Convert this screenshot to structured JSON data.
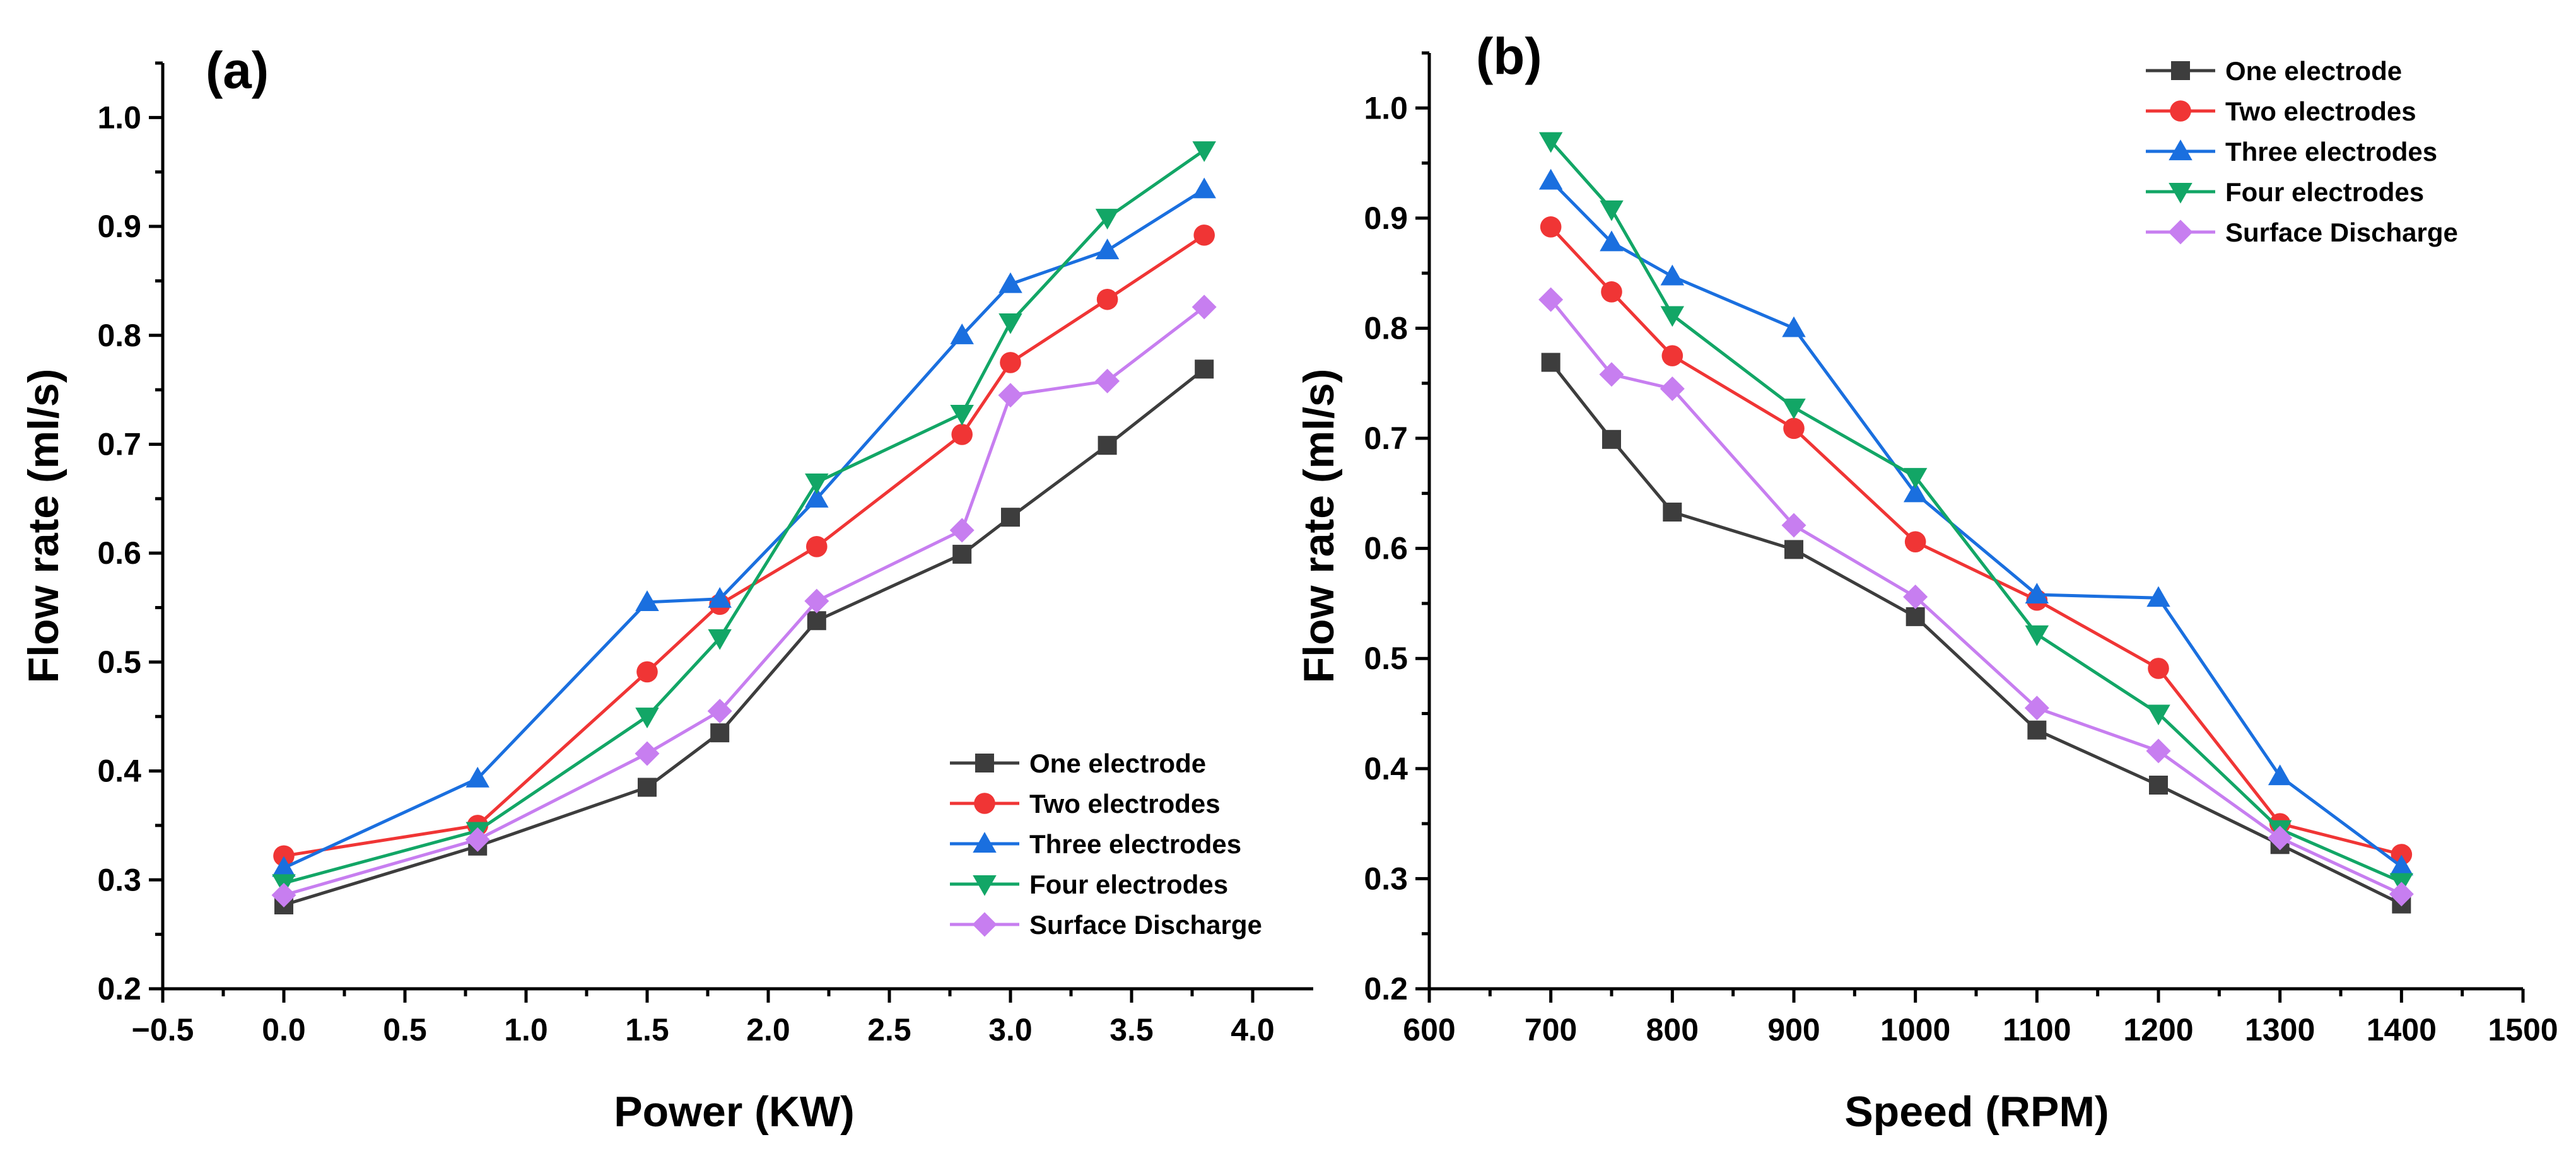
{
  "chart_data": [
    {
      "type": "line",
      "panel_label": "(a)",
      "title": "",
      "xlabel": "Power (KW)",
      "ylabel": "Flow rate (ml/s)",
      "xlim": [
        -0.5,
        4.25
      ],
      "ylim": [
        0.2,
        1.05
      ],
      "xticks": [
        -0.5,
        0.0,
        0.5,
        1.0,
        1.5,
        2.0,
        2.5,
        3.0,
        3.5,
        4.0
      ],
      "xtick_labels": [
        "−0.5",
        "0.0",
        "0.5",
        "1.0",
        "1.5",
        "2.0",
        "2.5",
        "3.0",
        "3.5",
        "4.0"
      ],
      "yticks": [
        0.2,
        0.3,
        0.4,
        0.5,
        0.6,
        0.7,
        0.8,
        0.9,
        1.0
      ],
      "ytick_labels": [
        "0.2",
        "0.3",
        "0.4",
        "0.5",
        "0.6",
        "0.7",
        "0.8",
        "0.9",
        "1.0"
      ],
      "legend_position": "bottom-right",
      "x": [
        0.0,
        0.8,
        1.5,
        1.8,
        2.2,
        2.8,
        3.0,
        3.4,
        3.8
      ],
      "series": [
        {
          "name": "One electrode",
          "color": "#3d3d3d",
          "marker": "square",
          "values": [
            0.277,
            0.331,
            0.385,
            0.435,
            0.538,
            0.599,
            0.633,
            0.699,
            0.769
          ]
        },
        {
          "name": "Two electrodes",
          "color": "#f03535",
          "marker": "circle",
          "values": [
            0.322,
            0.35,
            0.491,
            0.553,
            0.606,
            0.709,
            0.775,
            0.833,
            0.892
          ]
        },
        {
          "name": "Three electrodes",
          "color": "#1a6fdf",
          "marker": "triangle-up",
          "values": [
            0.311,
            0.393,
            0.555,
            0.558,
            0.65,
            0.8,
            0.847,
            0.878,
            0.934
          ]
        },
        {
          "name": "Four electrodes",
          "color": "#12a666",
          "marker": "triangle-down",
          "values": [
            0.297,
            0.345,
            0.45,
            0.522,
            0.665,
            0.728,
            0.812,
            0.908,
            0.97
          ]
        },
        {
          "name": "Surface Discharge",
          "color": "#c77ef0",
          "marker": "diamond",
          "values": [
            0.286,
            0.337,
            0.416,
            0.455,
            0.556,
            0.621,
            0.745,
            0.758,
            0.826
          ]
        }
      ]
    },
    {
      "type": "line",
      "panel_label": "(b)",
      "title": "",
      "xlabel": "Speed (RPM)",
      "ylabel": "Flow rate (ml/s)",
      "xlim": [
        600,
        1500
      ],
      "ylim": [
        0.2,
        1.05
      ],
      "xticks": [
        600,
        700,
        800,
        900,
        1000,
        1100,
        1200,
        1300,
        1400,
        1500
      ],
      "xtick_labels": [
        "600",
        "700",
        "800",
        "900",
        "1000",
        "1100",
        "1200",
        "1300",
        "1400",
        "1500"
      ],
      "yticks": [
        0.2,
        0.3,
        0.4,
        0.5,
        0.6,
        0.7,
        0.8,
        0.9,
        1.0
      ],
      "ytick_labels": [
        "0.2",
        "0.3",
        "0.4",
        "0.5",
        "0.6",
        "0.7",
        "0.8",
        "0.9",
        "1.0"
      ],
      "legend_position": "top-right",
      "x": [
        700,
        750,
        800,
        900,
        1000,
        1100,
        1200,
        1300,
        1400
      ],
      "series": [
        {
          "name": "One electrode",
          "color": "#3d3d3d",
          "marker": "square",
          "values": [
            0.769,
            0.699,
            0.633,
            0.599,
            0.538,
            0.435,
            0.385,
            0.331,
            0.277
          ]
        },
        {
          "name": "Two electrodes",
          "color": "#f03535",
          "marker": "circle",
          "values": [
            0.892,
            0.833,
            0.775,
            0.709,
            0.606,
            0.553,
            0.491,
            0.35,
            0.322
          ]
        },
        {
          "name": "Three electrodes",
          "color": "#1a6fdf",
          "marker": "triangle-up",
          "values": [
            0.934,
            0.878,
            0.847,
            0.8,
            0.65,
            0.558,
            0.555,
            0.393,
            0.311
          ]
        },
        {
          "name": "Four electrodes",
          "color": "#12a666",
          "marker": "triangle-down",
          "values": [
            0.97,
            0.908,
            0.812,
            0.728,
            0.665,
            0.522,
            0.45,
            0.345,
            0.297
          ]
        },
        {
          "name": "Surface Discharge",
          "color": "#c77ef0",
          "marker": "diamond",
          "values": [
            0.826,
            0.758,
            0.745,
            0.621,
            0.556,
            0.455,
            0.416,
            0.337,
            0.286
          ]
        }
      ]
    }
  ]
}
